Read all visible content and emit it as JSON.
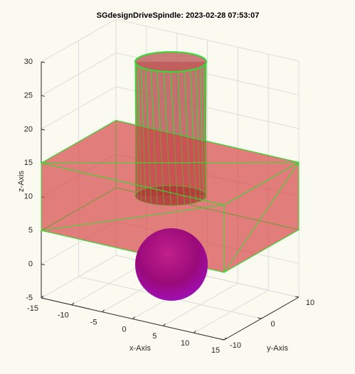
{
  "chart_data": {
    "type": "scene3d",
    "title": "SGdesignDriveSpindle: 2023-02-28 07:53:07",
    "xlabel": "x-Axis",
    "ylabel": "y-Axis",
    "zlabel": "z-Axis",
    "xlim": [
      -15,
      15
    ],
    "ylim": [
      -10,
      10
    ],
    "zlim": [
      -5,
      30
    ],
    "xticks": [
      -15,
      -10,
      -5,
      0,
      5,
      10,
      15
    ],
    "yticks": [
      -10,
      0,
      10
    ],
    "zticks": [
      -5,
      0,
      5,
      10,
      15,
      20,
      25,
      30
    ],
    "grid": true
  }
}
